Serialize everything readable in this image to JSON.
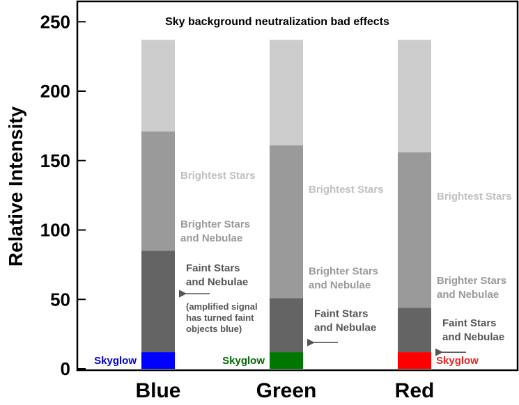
{
  "chart_data": {
    "type": "bar",
    "title": "Sky background neutralization bad effects",
    "ylabel": "Relative Intensity",
    "xlabel": "",
    "ylim": [
      0,
      260
    ],
    "yticks": [
      0,
      50,
      100,
      150,
      200,
      250
    ],
    "grid": false,
    "stacked": true,
    "categories": [
      "Blue",
      "Green",
      "Red"
    ],
    "series": [
      {
        "name": "Skyglow",
        "values": [
          12,
          12,
          12
        ]
      },
      {
        "name": "Faint Stars and Nebulae",
        "values": [
          73,
          39,
          32
        ]
      },
      {
        "name": "Brighter Stars and Nebulae",
        "values": [
          86,
          110,
          112
        ]
      },
      {
        "name": "Brightest Stars",
        "values": [
          66,
          76,
          81
        ]
      }
    ],
    "colors": {
      "skyglow_by_category": [
        "#0000ff",
        "#007700",
        "#ff0000"
      ],
      "skyglow_label_colors": [
        "#0000cc",
        "#006600",
        "#ee2222"
      ],
      "faint": "#646464",
      "brighter": "#9a9a9a",
      "brightest": "#cccccc",
      "label_dark": "#555555",
      "label_mid": "#999999",
      "label_light": "#c0c0c0"
    },
    "segment_labels": {
      "skyglow": "Skyglow",
      "faint_line1": "Faint Stars",
      "faint_line2": "and Nebulae",
      "brighter_line1": "Brighter Stars",
      "brighter_line2": "and Nebulae",
      "brightest": "Brightest Stars"
    },
    "annotations": [
      {
        "category": "Blue",
        "lines": [
          "(amplified signal",
          "has turned faint",
          "objects blue)"
        ]
      }
    ]
  }
}
